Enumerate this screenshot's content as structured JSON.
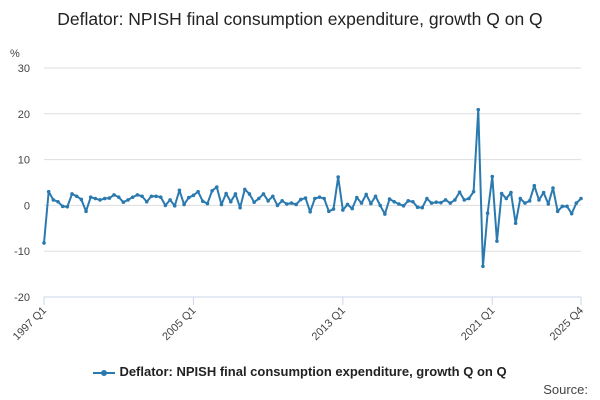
{
  "colors": {
    "series": "#2a7ab0",
    "grid": "#dddddd",
    "axis": "#ccd6eb",
    "text": "#444444"
  },
  "source_label": "Source:",
  "chart_data": {
    "type": "line",
    "title": "Deflator: NPISH final consumption expenditure, growth Q on Q",
    "ylabel": "%",
    "ylim": [
      -20,
      30
    ],
    "yticks": [
      -20,
      -10,
      0,
      10,
      20,
      30
    ],
    "xtick_labels": [
      "1997 Q1",
      "2005 Q1",
      "2013 Q1",
      "2021 Q1",
      "2025 Q4"
    ],
    "xtick_indices": [
      0,
      32,
      64,
      96,
      115
    ],
    "legend_position": "bottom",
    "series": [
      {
        "name": "Deflator: NPISH final consumption expenditure, growth Q on Q",
        "start": "1997 Q1",
        "end": "2025 Q4",
        "values": [
          -8.2,
          3.0,
          1.2,
          0.8,
          -0.2,
          -0.3,
          2.5,
          2.0,
          1.3,
          -1.3,
          1.8,
          1.5,
          1.2,
          1.5,
          1.6,
          2.3,
          1.8,
          0.7,
          1.2,
          1.8,
          2.3,
          2.0,
          0.8,
          2.0,
          2.0,
          1.8,
          0.0,
          1.2,
          -0.1,
          3.3,
          0.2,
          1.7,
          2.2,
          3.0,
          0.9,
          0.4,
          3.2,
          4.0,
          0.2,
          2.6,
          0.8,
          2.5,
          -0.5,
          3.5,
          2.5,
          0.7,
          1.5,
          2.5,
          1.0,
          2.0,
          0.0,
          1.0,
          0.3,
          0.5,
          0.2,
          1.3,
          1.6,
          -1.4,
          1.5,
          1.8,
          1.5,
          -1.3,
          -0.8,
          6.2,
          -1.0,
          0.2,
          -0.7,
          1.7,
          0.5,
          2.4,
          0.4,
          2.0,
          0.0,
          -1.9,
          1.4,
          0.8,
          0.3,
          -0.1,
          1.0,
          0.8,
          -0.4,
          -0.5,
          1.5,
          0.5,
          0.7,
          0.6,
          1.2,
          0.5,
          1.2,
          2.9,
          1.2,
          1.5,
          3.0,
          20.9,
          -13.3,
          -1.7,
          6.3,
          -7.8,
          2.6,
          1.5,
          2.8,
          -3.9,
          1.5,
          0.5,
          1.0,
          4.3,
          1.2,
          2.8,
          0.3,
          3.8,
          -1.3,
          -0.2,
          -0.2,
          -1.8,
          0.5,
          1.5
        ]
      }
    ]
  }
}
